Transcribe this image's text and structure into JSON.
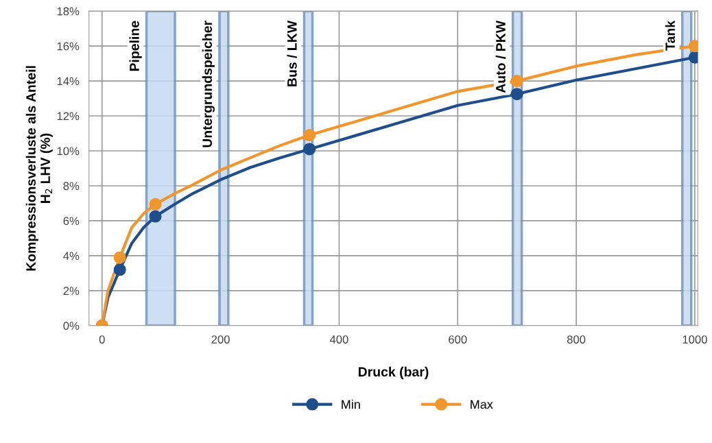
{
  "chart_data": {
    "type": "line",
    "xlabel": "Druck (bar)",
    "ylabel": "Kompressionsverluste als Anteil\nH$_{2}$ LHV (%)",
    "series": [
      {
        "name": "Min",
        "color": "#1f4e8c",
        "marker": "none",
        "x": [
          0,
          10,
          30,
          50,
          70,
          90,
          125,
          150,
          200,
          250,
          300,
          350,
          400,
          500,
          600,
          700,
          800,
          900,
          1000
        ],
        "values": [
          0,
          1.6,
          3.2,
          4.7,
          5.6,
          6.25,
          7.0,
          7.5,
          8.35,
          9.05,
          9.6,
          10.1,
          10.6,
          11.6,
          12.6,
          13.25,
          14.05,
          14.7,
          15.35
        ]
      },
      {
        "name": "Max",
        "color": "#f0962a",
        "marker": "none",
        "x": [
          0,
          10,
          30,
          50,
          70,
          90,
          125,
          150,
          200,
          250,
          300,
          350,
          400,
          500,
          600,
          700,
          800,
          900,
          1000
        ],
        "values": [
          0,
          2.0,
          3.9,
          5.6,
          6.4,
          6.95,
          7.6,
          8.0,
          8.9,
          9.6,
          10.3,
          10.9,
          11.4,
          12.4,
          13.4,
          14.0,
          14.85,
          15.5,
          16.0
        ]
      },
      {
        "type": "scatter",
        "color": "#1f4e8c",
        "x": [
          0,
          30,
          90,
          350,
          700,
          1000
        ],
        "values": [
          0,
          3.2,
          6.25,
          10.1,
          13.25,
          15.35
        ]
      },
      {
        "type": "scatter",
        "color": "#f0962a",
        "x": [
          0,
          30,
          90,
          350,
          700,
          1000
        ],
        "values": [
          0,
          3.9,
          6.95,
          10.9,
          14.0,
          16.0
        ]
      }
    ],
    "marker": "circle",
    "bands": [
      {
        "axis": "x",
        "from": 75,
        "to": 123,
        "label": "Pipeline",
        "color": "#c6d9f1"
      },
      {
        "axis": "x",
        "from": 198,
        "to": 213,
        "label": "Untergrundspeicher",
        "color": "#c6d9f1"
      },
      {
        "axis": "x",
        "from": 341,
        "to": 355,
        "label": "Bus / LKW",
        "color": "#c6d9f1"
      },
      {
        "axis": "x",
        "from": 693,
        "to": 708,
        "label": "Auto / PKW",
        "color": "#c6d9f1"
      },
      {
        "axis": "x",
        "from": 979,
        "to": 994,
        "label": "Tank",
        "color": "#c6d9f1"
      }
    ],
    "xlim": [
      -22,
      1005
    ],
    "xticks": [
      0,
      200,
      400,
      600,
      800,
      1000
    ],
    "ylim": [
      0,
      18
    ],
    "yticks": [
      {
        "value": 0,
        "label": "0%"
      },
      {
        "value": 2,
        "label": "2%"
      },
      {
        "value": 4,
        "label": "4%"
      },
      {
        "value": 6,
        "label": "6%"
      },
      {
        "value": 8,
        "label": "8%"
      },
      {
        "value": 10,
        "label": "10%"
      },
      {
        "value": 12,
        "label": "12%"
      },
      {
        "value": 14,
        "label": "14%"
      },
      {
        "value": 16,
        "label": "16%"
      },
      {
        "value": 18,
        "label": "18%"
      }
    ],
    "grid": true,
    "legend": "bottom"
  }
}
